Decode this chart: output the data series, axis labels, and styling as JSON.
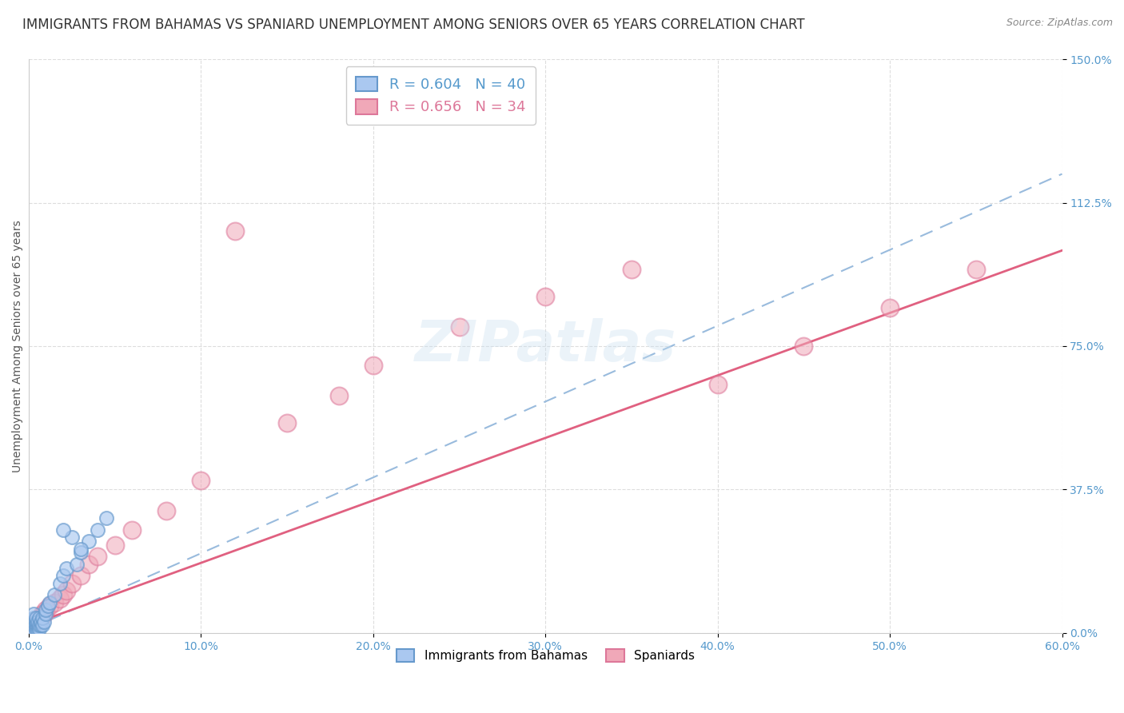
{
  "title": "IMMIGRANTS FROM BAHAMAS VS SPANIARD UNEMPLOYMENT AMONG SENIORS OVER 65 YEARS CORRELATION CHART",
  "source": "Source: ZipAtlas.com",
  "ylabel": "Unemployment Among Seniors over 65 years",
  "xlim": [
    0.0,
    0.6
  ],
  "ylim": [
    0.0,
    1.5
  ],
  "xticks": [
    0.0,
    0.1,
    0.2,
    0.3,
    0.4,
    0.5,
    0.6
  ],
  "xtick_labels": [
    "0.0%",
    "10.0%",
    "20.0%",
    "30.0%",
    "40.0%",
    "50.0%",
    "60.0%"
  ],
  "yticks": [
    0.0,
    0.375,
    0.75,
    1.125,
    1.5
  ],
  "ytick_labels": [
    "0.0%",
    "37.5%",
    "75.0%",
    "112.5%",
    "150.0%"
  ],
  "legend1_label": "R = 0.604   N = 40",
  "legend2_label": "R = 0.656   N = 34",
  "legend_bottom_label1": "Immigrants from Bahamas",
  "legend_bottom_label2": "Spaniards",
  "blue_color": "#aac8f0",
  "pink_color": "#f0a8b8",
  "blue_edge_color": "#6699cc",
  "pink_edge_color": "#dd7799",
  "blue_line_color": "#99bbdd",
  "pink_line_color": "#e06080",
  "blue_scatter_x": [
    0.001,
    0.002,
    0.002,
    0.002,
    0.003,
    0.003,
    0.003,
    0.003,
    0.003,
    0.004,
    0.004,
    0.004,
    0.004,
    0.005,
    0.005,
    0.005,
    0.006,
    0.006,
    0.006,
    0.007,
    0.007,
    0.008,
    0.008,
    0.009,
    0.01,
    0.01,
    0.011,
    0.012,
    0.015,
    0.018,
    0.02,
    0.022,
    0.025,
    0.028,
    0.03,
    0.035,
    0.04,
    0.02,
    0.03,
    0.045
  ],
  "blue_scatter_y": [
    0.01,
    0.01,
    0.02,
    0.03,
    0.01,
    0.02,
    0.03,
    0.04,
    0.05,
    0.01,
    0.02,
    0.03,
    0.04,
    0.01,
    0.02,
    0.03,
    0.01,
    0.02,
    0.04,
    0.02,
    0.03,
    0.02,
    0.04,
    0.03,
    0.05,
    0.06,
    0.07,
    0.08,
    0.1,
    0.13,
    0.15,
    0.17,
    0.25,
    0.18,
    0.21,
    0.24,
    0.27,
    0.27,
    0.22,
    0.3
  ],
  "pink_scatter_x": [
    0.001,
    0.002,
    0.003,
    0.004,
    0.005,
    0.006,
    0.007,
    0.008,
    0.009,
    0.01,
    0.012,
    0.015,
    0.018,
    0.02,
    0.022,
    0.025,
    0.03,
    0.035,
    0.04,
    0.05,
    0.06,
    0.08,
    0.1,
    0.12,
    0.15,
    0.18,
    0.2,
    0.25,
    0.3,
    0.35,
    0.4,
    0.45,
    0.5,
    0.55
  ],
  "pink_scatter_y": [
    0.01,
    0.02,
    0.02,
    0.03,
    0.03,
    0.04,
    0.04,
    0.05,
    0.05,
    0.06,
    0.07,
    0.08,
    0.09,
    0.1,
    0.11,
    0.13,
    0.15,
    0.18,
    0.2,
    0.23,
    0.27,
    0.32,
    0.4,
    1.05,
    0.55,
    0.62,
    0.7,
    0.8,
    0.88,
    0.95,
    0.65,
    0.75,
    0.85,
    0.95
  ],
  "blue_line_x0": 0.0,
  "blue_line_y0": 0.01,
  "blue_line_x1": 0.6,
  "blue_line_y1": 1.2,
  "pink_line_x0": 0.0,
  "pink_line_y0": 0.02,
  "pink_line_x1": 0.6,
  "pink_line_y1": 1.0,
  "background_color": "#ffffff",
  "grid_color": "#dddddd",
  "title_fontsize": 12,
  "axis_label_fontsize": 10,
  "tick_fontsize": 10,
  "tick_color": "#5599cc"
}
